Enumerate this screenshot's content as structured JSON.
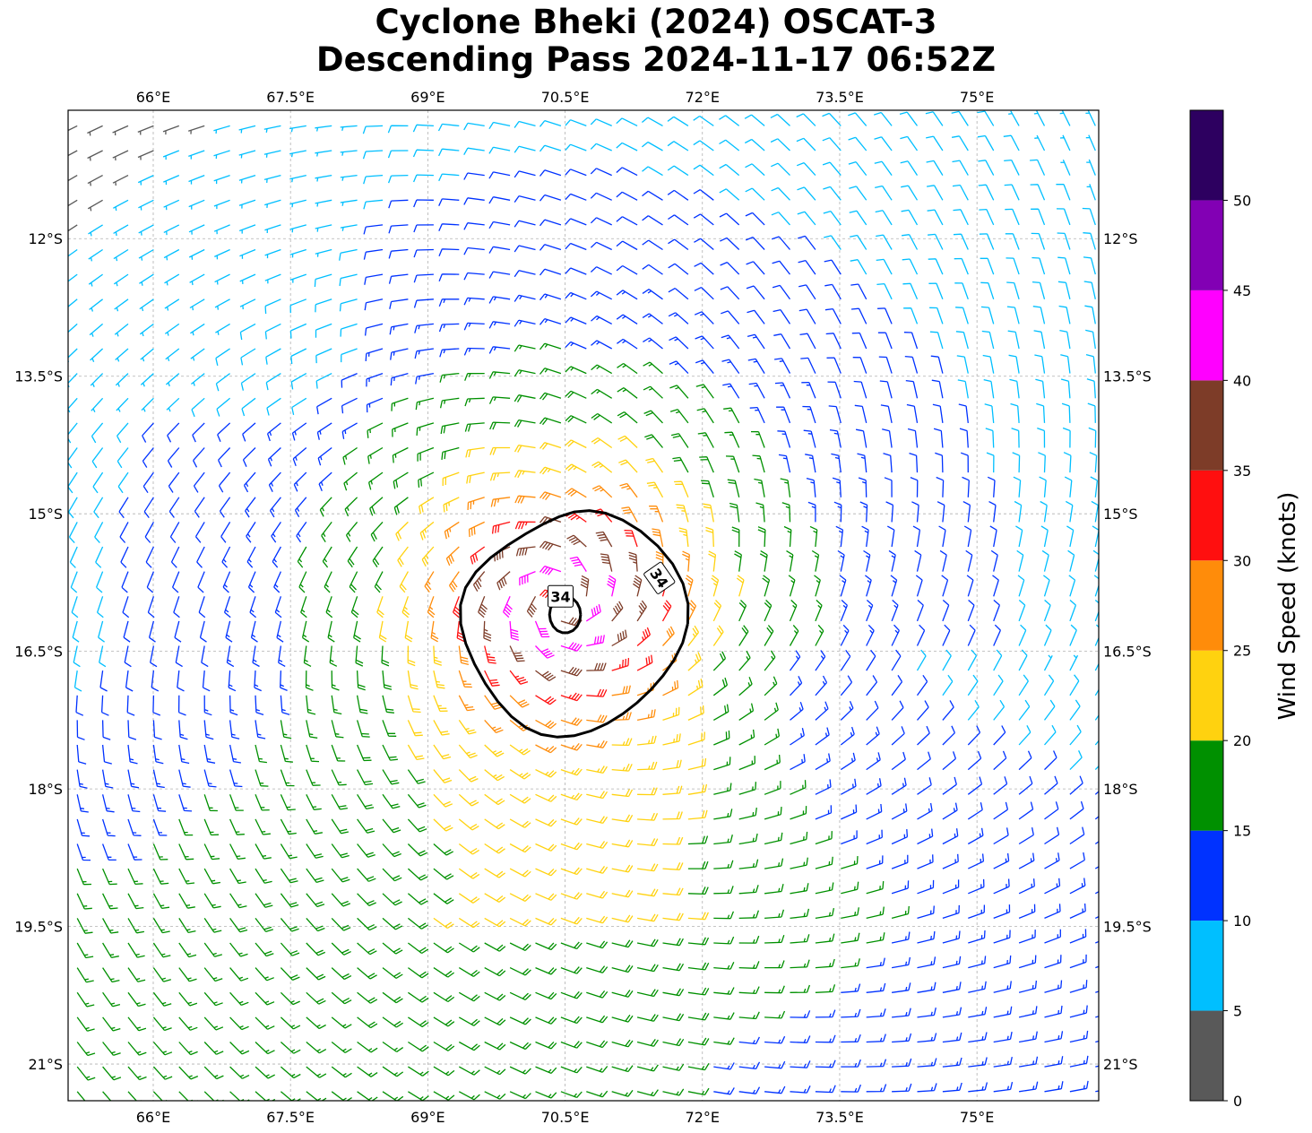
{
  "title": {
    "line1": "Cyclone Bheki (2024) OSCAT-3",
    "line2": "Descending Pass 2024-11-17 06:52Z"
  },
  "map": {
    "lon_range": [
      65.07,
      76.33
    ],
    "lat_range": [
      -21.4,
      -10.6
    ],
    "lon_ticks": [
      66,
      67.5,
      69,
      70.5,
      72,
      73.5,
      75
    ],
    "lon_tick_labels": [
      "66°E",
      "67.5°E",
      "69°E",
      "70.5°E",
      "72°E",
      "73.5°E",
      "75°E"
    ],
    "lat_ticks": [
      -12,
      -13.5,
      -15,
      -16.5,
      -18,
      -19.5,
      -21
    ],
    "lat_tick_labels": [
      "12°S",
      "13.5°S",
      "15°S",
      "16.5°S",
      "18°S",
      "19.5°S",
      "21°S"
    ],
    "gridlines": true,
    "center": {
      "lon": 70.45,
      "lat": -15.95
    },
    "wind_field": "cyclonic wind barbs, southern hemisphere",
    "contour": {
      "value_label": "34",
      "labels": [
        "34",
        "34"
      ]
    }
  },
  "colorbar": {
    "label": "Wind Speed (knots)",
    "ticks": [
      0,
      5,
      10,
      15,
      20,
      25,
      30,
      35,
      40,
      45,
      50
    ],
    "tick_labels": [
      "0",
      "5",
      "10",
      "15",
      "20",
      "25",
      "30",
      "35",
      "40",
      "45",
      "50"
    ],
    "bins": [
      {
        "min": 0,
        "max": 5,
        "color": "#595959"
      },
      {
        "min": 5,
        "max": 10,
        "color": "#00bfff"
      },
      {
        "min": 10,
        "max": 15,
        "color": "#0032ff"
      },
      {
        "min": 15,
        "max": 20,
        "color": "#009000"
      },
      {
        "min": 20,
        "max": 25,
        "color": "#ffd20f"
      },
      {
        "min": 25,
        "max": 30,
        "color": "#ff8c0a"
      },
      {
        "min": 30,
        "max": 35,
        "color": "#ff0f0f"
      },
      {
        "min": 35,
        "max": 40,
        "color": "#7d3c28"
      },
      {
        "min": 40,
        "max": 45,
        "color": "#ff00ff"
      },
      {
        "min": 45,
        "max": 50,
        "color": "#8200b4"
      },
      {
        "min": 50,
        "max": 55,
        "color": "#2d0060"
      }
    ]
  }
}
